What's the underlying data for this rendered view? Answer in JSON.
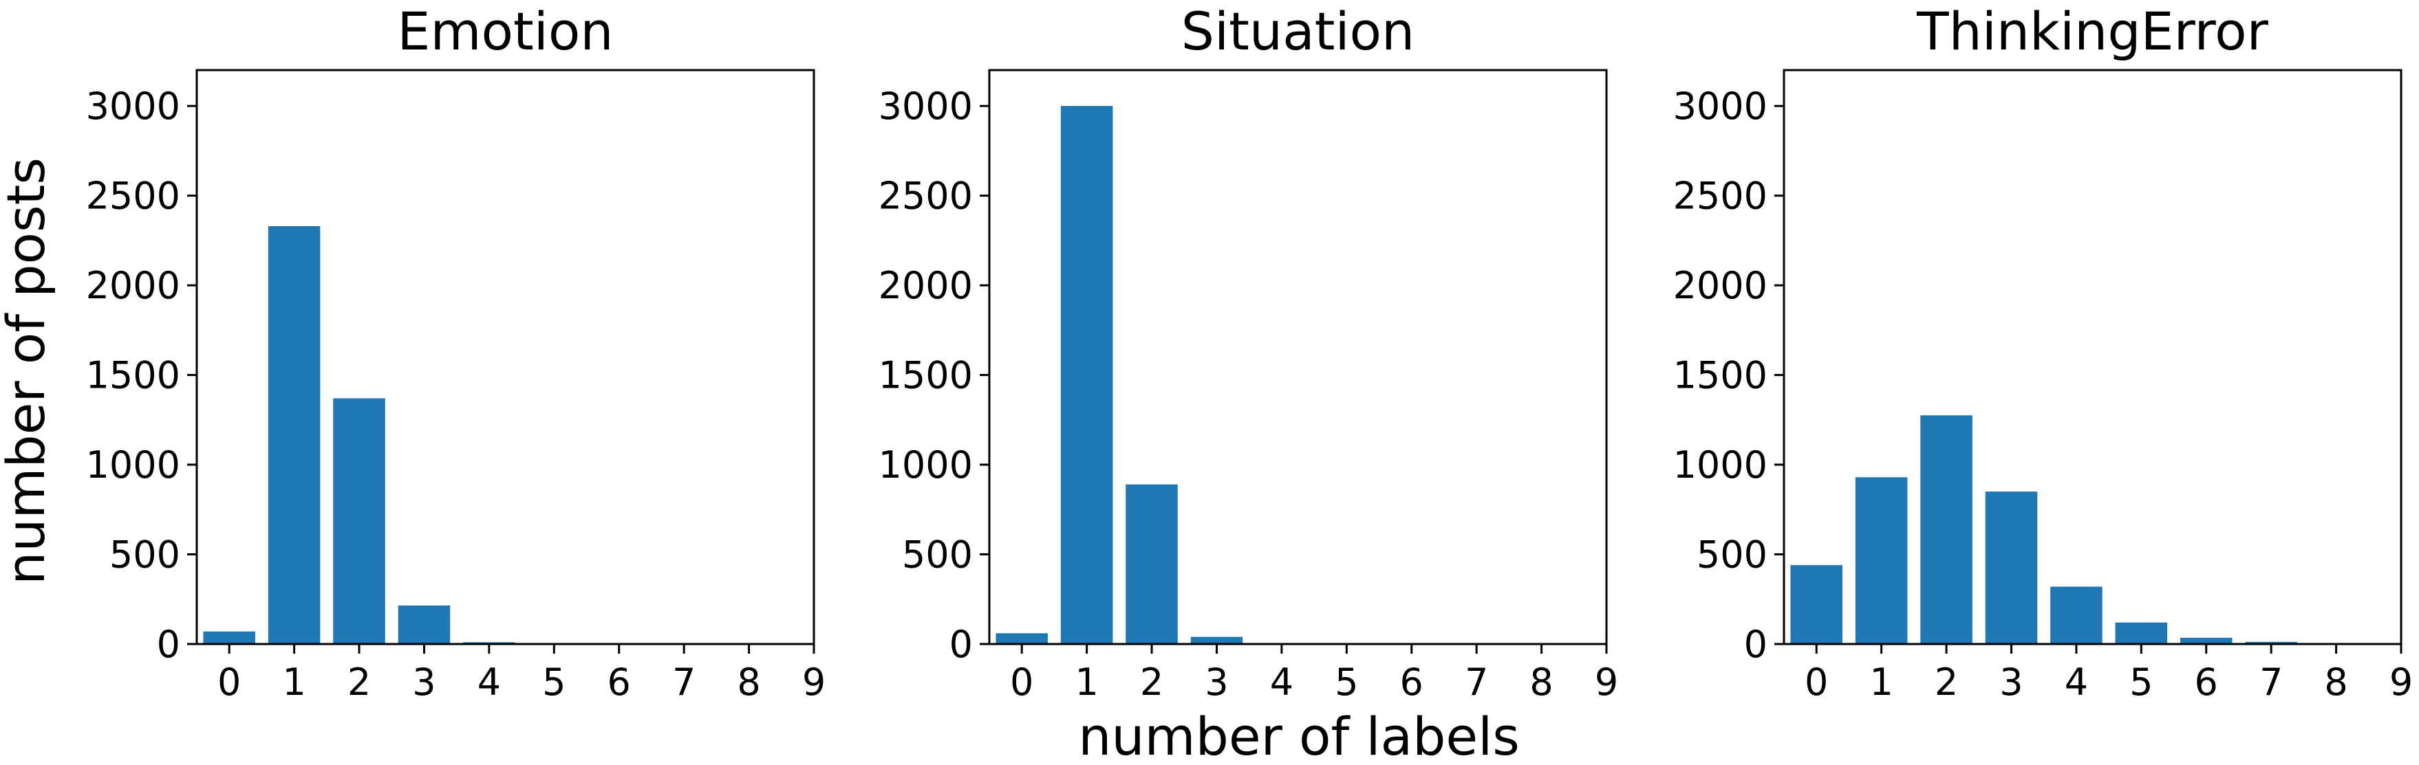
{
  "figure": {
    "ylabel": "number of posts",
    "xlabel": "number of labels"
  },
  "chart_data": [
    {
      "type": "bar",
      "title": "Emotion",
      "categories": [
        "0",
        "1",
        "2",
        "3",
        "4",
        "5",
        "6",
        "7",
        "8",
        "9"
      ],
      "x": [
        0,
        1,
        2,
        3,
        4,
        5,
        6,
        7,
        8
      ],
      "values": [
        70,
        2330,
        1370,
        215,
        10,
        2,
        1,
        0,
        0
      ],
      "ylim": [
        0,
        3200
      ],
      "xlim": [
        -0.5,
        9
      ],
      "yticks": [
        "0",
        "500",
        "1000",
        "1500",
        "2000",
        "2500",
        "3000"
      ],
      "xticks": [
        "0",
        "1",
        "2",
        "3",
        "4",
        "5",
        "6",
        "7",
        "8",
        "9"
      ],
      "color": "#1f77b4"
    },
    {
      "type": "bar",
      "title": "Situation",
      "categories": [
        "0",
        "1",
        "2",
        "3",
        "4",
        "5",
        "6",
        "7",
        "8",
        "9"
      ],
      "x": [
        0,
        1,
        2,
        3,
        4,
        5,
        6,
        7,
        8
      ],
      "values": [
        60,
        3000,
        890,
        40,
        3,
        1,
        0,
        0,
        0
      ],
      "ylim": [
        0,
        3200
      ],
      "xlim": [
        -0.5,
        9
      ],
      "yticks": [
        "0",
        "500",
        "1000",
        "1500",
        "2000",
        "2500",
        "3000"
      ],
      "xticks": [
        "0",
        "1",
        "2",
        "3",
        "4",
        "5",
        "6",
        "7",
        "8",
        "9"
      ],
      "color": "#1f77b4"
    },
    {
      "type": "bar",
      "title": "ThinkingError",
      "categories": [
        "0",
        "1",
        "2",
        "3",
        "4",
        "5",
        "6",
        "7",
        "8",
        "9"
      ],
      "x": [
        0,
        1,
        2,
        3,
        4,
        5,
        6,
        7,
        8
      ],
      "values": [
        440,
        930,
        1275,
        850,
        320,
        120,
        35,
        12,
        3
      ],
      "ylim": [
        0,
        3200
      ],
      "xlim": [
        -0.5,
        9
      ],
      "yticks": [
        "0",
        "500",
        "1000",
        "1500",
        "2000",
        "2500",
        "3000"
      ],
      "xticks": [
        "0",
        "1",
        "2",
        "3",
        "4",
        "5",
        "6",
        "7",
        "8",
        "9"
      ],
      "color": "#1f77b4"
    }
  ]
}
